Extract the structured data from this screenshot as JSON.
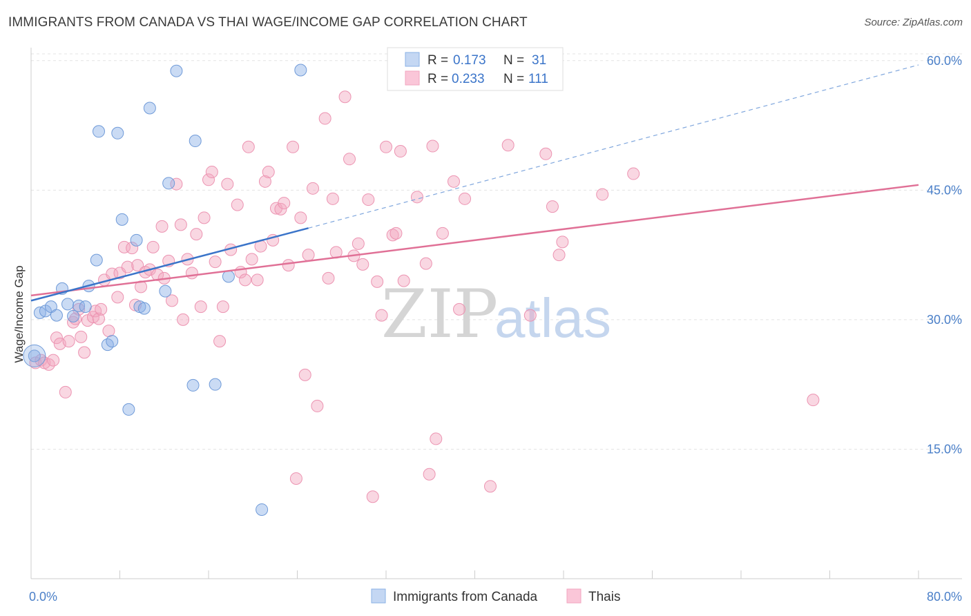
{
  "chart_data": {
    "type": "scatter",
    "title": "IMMIGRANTS FROM CANADA VS THAI WAGE/INCOME GAP CORRELATION CHART",
    "source": "Source: ZipAtlas.com",
    "xlabel": "",
    "ylabel": "Wage/Income Gap",
    "xlim": [
      0,
      80
    ],
    "ylim": [
      0,
      61.5
    ],
    "x_tick_labels": [
      "0.0%",
      "80.0%"
    ],
    "y_ticks": [
      15,
      30,
      45,
      60
    ],
    "y_tick_labels": [
      "15.0%",
      "30.0%",
      "45.0%",
      "60.0%"
    ],
    "grid": true,
    "watermark": {
      "zip": "ZIP",
      "atlas": "atlas"
    },
    "legend": {
      "position": "top-center",
      "entries": [
        {
          "r_label": "R =",
          "r_value": "0.173",
          "n_label": "N =",
          "n_value": "31"
        },
        {
          "r_label": "R =",
          "r_value": "0.233",
          "n_label": "N =",
          "n_value": "111"
        }
      ]
    },
    "series": [
      {
        "name": "Immigrants from Canada",
        "color": "#8ab0e6",
        "line_color": "#3a74c9",
        "trend": {
          "x0": 0,
          "y0": 32.2,
          "x1": 25,
          "y1": 40.6,
          "dashed_to_x": 80,
          "dashed_to_y": 59.5
        },
        "points": [
          [
            0.3,
            25.8
          ],
          [
            0.8,
            30.8
          ],
          [
            1.3,
            31.0
          ],
          [
            1.8,
            31.5
          ],
          [
            2.3,
            30.5
          ],
          [
            2.8,
            33.6
          ],
          [
            3.3,
            31.8
          ],
          [
            3.8,
            30.4
          ],
          [
            4.3,
            31.6
          ],
          [
            4.9,
            31.5
          ],
          [
            5.2,
            33.9
          ],
          [
            5.9,
            36.9
          ],
          [
            6.1,
            51.8
          ],
          [
            6.9,
            27.1
          ],
          [
            7.3,
            27.5
          ],
          [
            7.8,
            51.6
          ],
          [
            8.2,
            41.6
          ],
          [
            8.8,
            19.6
          ],
          [
            9.5,
            39.2
          ],
          [
            9.8,
            31.5
          ],
          [
            10.2,
            31.3
          ],
          [
            10.7,
            54.5
          ],
          [
            12.1,
            33.3
          ],
          [
            12.4,
            45.8
          ],
          [
            13.1,
            58.8
          ],
          [
            14.6,
            22.4
          ],
          [
            14.8,
            50.7
          ],
          [
            16.6,
            22.5
          ],
          [
            17.8,
            35.0
          ],
          [
            20.8,
            8.0
          ],
          [
            24.3,
            58.9
          ]
        ]
      },
      {
        "name": "Thais",
        "color": "#f2a6bf",
        "line_color": "#e07096",
        "trend": {
          "x0": 0,
          "y0": 32.8,
          "x1": 80,
          "y1": 45.6
        },
        "points": [
          [
            0.4,
            25.0
          ],
          [
            0.9,
            25.3
          ],
          [
            1.2,
            25.0
          ],
          [
            1.6,
            24.8
          ],
          [
            2.0,
            25.3
          ],
          [
            2.3,
            27.9
          ],
          [
            2.6,
            27.2
          ],
          [
            3.1,
            21.6
          ],
          [
            3.4,
            27.5
          ],
          [
            3.8,
            29.7
          ],
          [
            4.0,
            30.1
          ],
          [
            4.3,
            31.2
          ],
          [
            4.5,
            28.0
          ],
          [
            4.8,
            26.2
          ],
          [
            5.1,
            29.9
          ],
          [
            5.6,
            30.3
          ],
          [
            5.8,
            31.0
          ],
          [
            6.1,
            30.1
          ],
          [
            6.3,
            31.2
          ],
          [
            6.6,
            34.6
          ],
          [
            7.0,
            28.7
          ],
          [
            7.3,
            35.3
          ],
          [
            7.8,
            32.6
          ],
          [
            8.0,
            35.4
          ],
          [
            8.4,
            38.4
          ],
          [
            8.7,
            36.1
          ],
          [
            9.1,
            38.3
          ],
          [
            9.4,
            31.7
          ],
          [
            9.6,
            36.3
          ],
          [
            9.9,
            33.8
          ],
          [
            10.3,
            35.5
          ],
          [
            10.7,
            35.8
          ],
          [
            11.0,
            38.4
          ],
          [
            11.4,
            35.2
          ],
          [
            11.8,
            40.8
          ],
          [
            12.0,
            34.8
          ],
          [
            12.4,
            36.8
          ],
          [
            12.7,
            32.2
          ],
          [
            13.1,
            45.7
          ],
          [
            13.5,
            41.0
          ],
          [
            13.7,
            30.0
          ],
          [
            14.1,
            37.0
          ],
          [
            14.5,
            35.4
          ],
          [
            14.9,
            39.9
          ],
          [
            15.3,
            31.5
          ],
          [
            15.6,
            41.8
          ],
          [
            16.0,
            46.2
          ],
          [
            16.3,
            47.1
          ],
          [
            16.6,
            36.7
          ],
          [
            17.0,
            27.5
          ],
          [
            17.3,
            31.5
          ],
          [
            17.7,
            45.7
          ],
          [
            18.0,
            38.1
          ],
          [
            18.6,
            43.3
          ],
          [
            18.9,
            35.5
          ],
          [
            19.3,
            34.6
          ],
          [
            19.6,
            50.0
          ],
          [
            19.9,
            37.0
          ],
          [
            20.4,
            34.6
          ],
          [
            20.7,
            38.5
          ],
          [
            21.1,
            46.0
          ],
          [
            21.4,
            47.1
          ],
          [
            21.8,
            39.2
          ],
          [
            22.1,
            42.9
          ],
          [
            22.5,
            42.8
          ],
          [
            22.8,
            43.5
          ],
          [
            23.2,
            36.3
          ],
          [
            23.6,
            50.0
          ],
          [
            23.9,
            11.6
          ],
          [
            24.3,
            41.8
          ],
          [
            24.7,
            23.6
          ],
          [
            25.0,
            37.5
          ],
          [
            25.4,
            45.2
          ],
          [
            25.8,
            20.0
          ],
          [
            26.5,
            53.3
          ],
          [
            26.8,
            34.8
          ],
          [
            27.2,
            44.0
          ],
          [
            27.5,
            37.8
          ],
          [
            28.3,
            55.8
          ],
          [
            28.7,
            48.6
          ],
          [
            29.1,
            37.4
          ],
          [
            29.5,
            38.8
          ],
          [
            29.9,
            36.4
          ],
          [
            30.4,
            43.9
          ],
          [
            30.8,
            9.5
          ],
          [
            31.2,
            34.4
          ],
          [
            31.6,
            30.5
          ],
          [
            32.0,
            50.0
          ],
          [
            32.6,
            39.8
          ],
          [
            32.9,
            40.0
          ],
          [
            33.3,
            49.5
          ],
          [
            33.6,
            34.5
          ],
          [
            34.8,
            44.2
          ],
          [
            35.6,
            36.5
          ],
          [
            35.9,
            12.1
          ],
          [
            36.2,
            50.1
          ],
          [
            36.5,
            16.2
          ],
          [
            37.1,
            40.0
          ],
          [
            38.1,
            46.0
          ],
          [
            38.6,
            31.2
          ],
          [
            39.1,
            44.0
          ],
          [
            41.4,
            10.7
          ],
          [
            43.0,
            50.2
          ],
          [
            45.0,
            30.5
          ],
          [
            46.4,
            49.2
          ],
          [
            47.0,
            43.1
          ],
          [
            47.6,
            37.5
          ],
          [
            47.9,
            39.0
          ],
          [
            51.5,
            44.5
          ],
          [
            54.3,
            46.9
          ],
          [
            70.5,
            20.7
          ]
        ]
      }
    ]
  }
}
